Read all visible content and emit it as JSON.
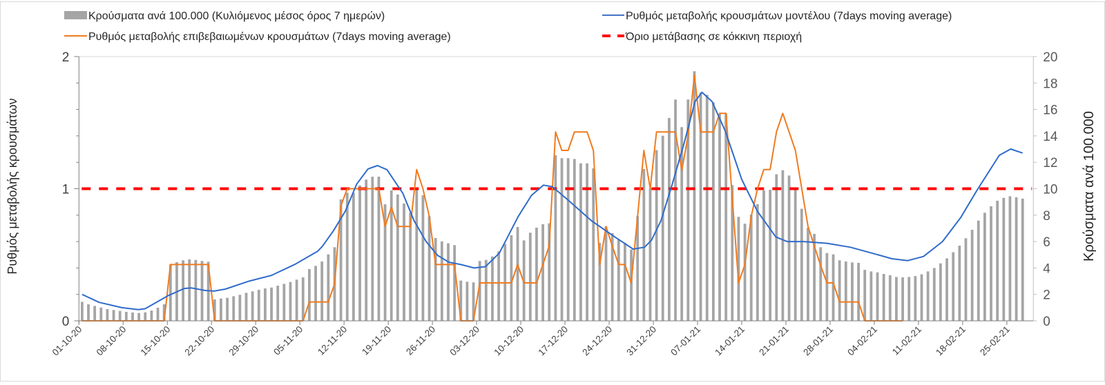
{
  "chart_data": {
    "type": "bar+line",
    "title": "",
    "legend": {
      "position": "top",
      "items": [
        {
          "key": "cases",
          "label": "Κρούσματα ανά 100.000 (Κυλιόμενος μέσος όρος 7 ημερών)"
        },
        {
          "key": "model",
          "label": "Ρυθμός μεταβολής κρουσμάτων μοντέλου (7days moving average)"
        },
        {
          "key": "confirmed",
          "label": "Ρυθμός μεταβολής επιβεβαιωμένων κρουσμάτων (7days moving average)"
        },
        {
          "key": "threshold",
          "label": "Όριο μετάβασης σε κόκκινη περιοχή"
        }
      ]
    },
    "ylabel_left": "Ρυθμός μεταβολής κρουσμάτων",
    "ylabel_right": "Κρούσματα ανά 100.000",
    "ylim_left": [
      0,
      2
    ],
    "ylim_right": [
      0,
      20
    ],
    "yticks_left": [
      "0",
      "1",
      "2"
    ],
    "yticks_right": [
      "0",
      "2",
      "4",
      "6",
      "8",
      "10",
      "12",
      "14",
      "16",
      "18",
      "20"
    ],
    "x_start_date": "01-10-20",
    "x_days_span": 151.2,
    "xtick_every_days": 7,
    "xtick_labels": [
      "01-10-20",
      "08-10-20",
      "15-10-20",
      "22-10-20",
      "29-10-20",
      "05-11-20",
      "12-11-20",
      "19-11-20",
      "26-11-20",
      "03-12-20",
      "10-12-20",
      "17-12-20",
      "24-12-20",
      "31-12-20",
      "07-01-21",
      "14-01-21",
      "21-01-21",
      "28-01-21",
      "04-02-21",
      "11-02-21",
      "18-02-21",
      "25-02-21"
    ],
    "colors": {
      "cases": "#a5a5a5",
      "model": "#2f6bcb",
      "confirmed": "#f07b1f",
      "threshold": "#ff0000"
    },
    "series": [
      {
        "name": "Κρούσματα ανά 100.000 (Κυλιόμενος μέσος όρος 7 ημερών)",
        "type": "bar",
        "axis": "right",
        "values": [
          1.44,
          1.25,
          1.13,
          1.01,
          0.89,
          0.82,
          0.75,
          0.68,
          0.63,
          0.59,
          0.64,
          0.78,
          0.99,
          1.25,
          4.26,
          4.44,
          4.58,
          4.65,
          4.61,
          4.53,
          4.47,
          1.62,
          1.69,
          1.74,
          1.86,
          1.97,
          2.12,
          2.23,
          2.35,
          2.45,
          2.52,
          2.66,
          2.8,
          2.94,
          3.12,
          3.29,
          3.92,
          4.16,
          4.49,
          5.03,
          5.57,
          9.19,
          9.7,
          9.7,
          10.25,
          10.69,
          10.91,
          10.91,
          8.82,
          9.87,
          9.56,
          8.88,
          8.18,
          9.92,
          9.5,
          7.92,
          6.27,
          6.01,
          5.87,
          5.73,
          3.05,
          2.96,
          2.91,
          4.53,
          4.61,
          4.87,
          5.26,
          5.83,
          6.48,
          7.1,
          6.09,
          6.67,
          7.05,
          7.31,
          7.38,
          12.53,
          12.31,
          12.31,
          12.25,
          11.92,
          11.92,
          11.54,
          5.9,
          7.14,
          6.63,
          6.14,
          5.9,
          5.4,
          7.92,
          11.49,
          10.01,
          12.92,
          14.01,
          15.35,
          16.75,
          14.66,
          16.75,
          18.89,
          17.27,
          17.11,
          16.55,
          15.67,
          15.67,
          10.27,
          7.87,
          7.35,
          8.04,
          8.83,
          9.87,
          9.92,
          11.09,
          11.4,
          11.0,
          9.97,
          8.48,
          7.05,
          6.58,
          5.57,
          5.13,
          5.03,
          4.58,
          4.49,
          4.42,
          4.39,
          3.86,
          3.74,
          3.67,
          3.55,
          3.45,
          3.32,
          3.29,
          3.32,
          3.39,
          3.52,
          3.74,
          4.0,
          4.35,
          4.73,
          5.19,
          5.69,
          6.25,
          6.89,
          7.59,
          8.18,
          8.67,
          9.09,
          9.31,
          9.43,
          9.35,
          9.25
        ]
      },
      {
        "name": "Ρυθμός μεταβολής κρουσμάτων μοντέλου (7days moving average)",
        "type": "line",
        "axis": "left",
        "points": [
          [
            0,
            0.2
          ],
          [
            2.7,
            0.14
          ],
          [
            6.3,
            0.1
          ],
          [
            8.9,
            0.085
          ],
          [
            10,
            0.092
          ],
          [
            13.6,
            0.19
          ],
          [
            16.2,
            0.245
          ],
          [
            17.3,
            0.249
          ],
          [
            19.5,
            0.23
          ],
          [
            20.9,
            0.225
          ],
          [
            22.7,
            0.24
          ],
          [
            26.4,
            0.3
          ],
          [
            30,
            0.344
          ],
          [
            33.7,
            0.427
          ],
          [
            37.3,
            0.526
          ],
          [
            38.1,
            0.566
          ],
          [
            39.8,
            0.68
          ],
          [
            41.7,
            0.83
          ],
          [
            43.5,
            1.035
          ],
          [
            45.3,
            1.15
          ],
          [
            46.8,
            1.175
          ],
          [
            48.3,
            1.144
          ],
          [
            50.8,
            0.966
          ],
          [
            52.6,
            0.757
          ],
          [
            54.5,
            0.6
          ],
          [
            56.3,
            0.496
          ],
          [
            58.1,
            0.444
          ],
          [
            60,
            0.426
          ],
          [
            62.1,
            0.4
          ],
          [
            63.9,
            0.41
          ],
          [
            66.1,
            0.513
          ],
          [
            69.1,
            0.79
          ],
          [
            71.2,
            0.95
          ],
          [
            73.1,
            1.027
          ],
          [
            74.5,
            1.015
          ],
          [
            77,
            0.914
          ],
          [
            80.7,
            0.757
          ],
          [
            84.4,
            0.635
          ],
          [
            87.3,
            0.543
          ],
          [
            89.1,
            0.557
          ],
          [
            90.2,
            0.61
          ],
          [
            91.7,
            0.757
          ],
          [
            93.5,
            1.036
          ],
          [
            95.4,
            1.349
          ],
          [
            97.1,
            1.66
          ],
          [
            98.2,
            1.73
          ],
          [
            99.8,
            1.66
          ],
          [
            101.9,
            1.436
          ],
          [
            104.5,
            1.07
          ],
          [
            107,
            0.827
          ],
          [
            109.9,
            0.635
          ],
          [
            111.7,
            0.6
          ],
          [
            114.3,
            0.6
          ],
          [
            118,
            0.587
          ],
          [
            121.7,
            0.557
          ],
          [
            125.3,
            0.51
          ],
          [
            128.3,
            0.47
          ],
          [
            130.8,
            0.456
          ],
          [
            133.3,
            0.487
          ],
          [
            136.3,
            0.6
          ],
          [
            139.2,
            0.783
          ],
          [
            141.8,
            0.99
          ],
          [
            145.3,
            1.253
          ],
          [
            147.1,
            1.3
          ],
          [
            149,
            1.27
          ]
        ]
      },
      {
        "name": "Ρυθμός μεταβολής επιβεβαιωμένων κρουσμάτων (7days moving average)",
        "type": "line",
        "axis": "left",
        "points": [
          [
            0,
            0
          ],
          [
            13,
            0
          ],
          [
            14,
            0.426
          ],
          [
            20,
            0.426
          ],
          [
            21,
            0
          ],
          [
            35,
            0
          ],
          [
            36,
            0.143
          ],
          [
            39,
            0.143
          ],
          [
            40,
            0.28
          ],
          [
            41,
            0.87
          ],
          [
            42,
            1.0
          ],
          [
            47,
            1.0
          ],
          [
            48,
            0.714
          ],
          [
            49,
            0.86
          ],
          [
            50,
            0.714
          ],
          [
            52,
            0.714
          ],
          [
            53,
            1.145
          ],
          [
            54,
            1.0
          ],
          [
            55,
            0.79
          ],
          [
            56,
            0.426
          ],
          [
            59,
            0.426
          ],
          [
            60,
            0
          ],
          [
            62,
            0
          ],
          [
            63,
            0.287
          ],
          [
            68,
            0.287
          ],
          [
            69,
            0.426
          ],
          [
            70,
            0.287
          ],
          [
            72,
            0.287
          ],
          [
            74,
            0.566
          ],
          [
            75,
            1.43
          ],
          [
            76,
            1.29
          ],
          [
            77,
            1.29
          ],
          [
            78,
            1.43
          ],
          [
            80,
            1.43
          ],
          [
            81,
            1.29
          ],
          [
            82,
            0.426
          ],
          [
            83,
            0.714
          ],
          [
            84,
            0.566
          ],
          [
            85,
            0.426
          ],
          [
            86,
            0.426
          ],
          [
            87,
            0.287
          ],
          [
            88,
            0.79
          ],
          [
            89,
            1.29
          ],
          [
            90,
            1.0
          ],
          [
            91,
            1.43
          ],
          [
            94,
            1.43
          ],
          [
            95,
            1.14
          ],
          [
            96,
            1.4
          ],
          [
            97,
            1.86
          ],
          [
            98,
            1.43
          ],
          [
            100,
            1.43
          ],
          [
            101,
            1.57
          ],
          [
            102,
            1.57
          ],
          [
            104,
            0.287
          ],
          [
            105,
            0.426
          ],
          [
            106,
            0.79
          ],
          [
            107,
            1.0
          ],
          [
            108,
            1.145
          ],
          [
            109,
            1.145
          ],
          [
            110,
            1.43
          ],
          [
            111,
            1.57
          ],
          [
            113,
            1.29
          ],
          [
            115,
            0.714
          ],
          [
            117,
            0.418
          ],
          [
            118,
            0.287
          ],
          [
            119,
            0.287
          ],
          [
            120,
            0.143
          ],
          [
            123,
            0.143
          ],
          [
            124,
            0
          ],
          [
            130,
            0
          ]
        ]
      },
      {
        "name": "Όριο μετάβασης σε κόκκινη περιοχή",
        "type": "hline",
        "axis": "left",
        "value": 1
      }
    ],
    "grid": false
  }
}
